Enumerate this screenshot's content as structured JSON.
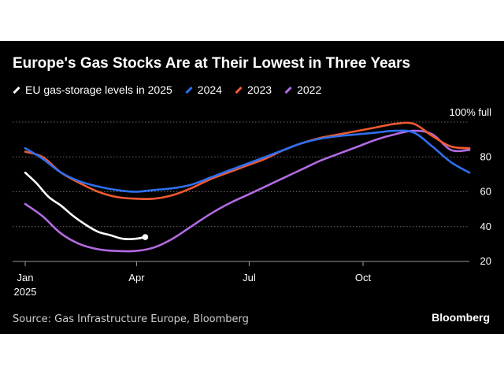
{
  "chart_data": {
    "type": "line",
    "title": "Europe's Gas Stocks Are at Their Lowest in Three Years",
    "xlabel": "",
    "ylabel": "",
    "x_ticks": [
      {
        "label": "Jan",
        "sublabel": "2025",
        "day": 1
      },
      {
        "label": "Apr",
        "sublabel": "",
        "day": 91
      },
      {
        "label": "Jul",
        "sublabel": "",
        "day": 182
      },
      {
        "label": "Oct",
        "sublabel": "",
        "day": 274
      }
    ],
    "y_ticks": [
      {
        "value": 20,
        "label": "20"
      },
      {
        "value": 40,
        "label": "40"
      },
      {
        "value": 60,
        "label": "60"
      },
      {
        "value": 80,
        "label": "80"
      },
      {
        "value": 100,
        "label": "100% full"
      }
    ],
    "xlim": [
      1,
      365
    ],
    "ylim": [
      20,
      100
    ],
    "grid": "horizontal dotted",
    "legend_position": "top-left",
    "series": [
      {
        "name": "EU gas-storage levels in 2025",
        "color": "#ffffff",
        "end_marker": true,
        "x": [
          1,
          10,
          20,
          30,
          40,
          50,
          60,
          70,
          80,
          90,
          98
        ],
        "y": [
          71,
          65,
          57,
          52,
          46,
          41,
          37,
          35,
          33,
          33,
          34
        ]
      },
      {
        "name": "2024",
        "color": "#2f6fef",
        "end_marker": false,
        "x": [
          1,
          15,
          30,
          45,
          60,
          75,
          90,
          105,
          120,
          135,
          150,
          165,
          180,
          195,
          210,
          225,
          240,
          255,
          270,
          285,
          300,
          315,
          330,
          345,
          360
        ],
        "y": [
          85,
          79,
          71,
          66,
          63,
          61,
          60,
          61,
          62,
          64,
          68,
          72,
          76,
          80,
          84,
          88,
          90.5,
          92,
          93,
          94,
          95,
          94,
          86,
          77,
          71
        ]
      },
      {
        "name": "2023",
        "color": "#ef5b30",
        "end_marker": false,
        "x": [
          1,
          15,
          30,
          45,
          60,
          75,
          90,
          105,
          120,
          135,
          150,
          165,
          180,
          195,
          210,
          225,
          240,
          255,
          270,
          285,
          300,
          315,
          330,
          345,
          360
        ],
        "y": [
          83,
          80,
          71,
          65,
          60,
          57,
          56,
          56,
          58,
          62,
          67,
          71,
          75,
          79,
          84,
          88,
          91,
          93,
          95,
          97,
          99,
          99,
          92,
          86,
          85
        ]
      },
      {
        "name": "2022",
        "color": "#b36ae2",
        "end_marker": false,
        "x": [
          1,
          15,
          30,
          45,
          60,
          75,
          90,
          105,
          120,
          135,
          150,
          165,
          180,
          195,
          210,
          225,
          240,
          255,
          270,
          285,
          300,
          315,
          330,
          345,
          360
        ],
        "y": [
          53,
          46,
          36,
          30,
          27,
          26,
          26,
          28,
          33,
          40,
          47,
          53,
          58,
          63,
          68,
          73,
          78,
          82,
          86,
          90,
          93,
          95,
          93,
          84,
          84
        ]
      }
    ]
  },
  "legend_items": [
    {
      "label": "EU gas-storage levels in 2025",
      "color": "#ffffff"
    },
    {
      "label": "2024",
      "color": "#2f6fef"
    },
    {
      "label": "2023",
      "color": "#ef5b30"
    },
    {
      "label": "2022",
      "color": "#b36ae2"
    }
  ],
  "footer": {
    "source": "Source: Gas Infrastructure Europe, Bloomberg",
    "brand": "Bloomberg"
  },
  "colors": {
    "background": "#000000",
    "grid": "#6a6a6a",
    "text": "#ffffff"
  }
}
